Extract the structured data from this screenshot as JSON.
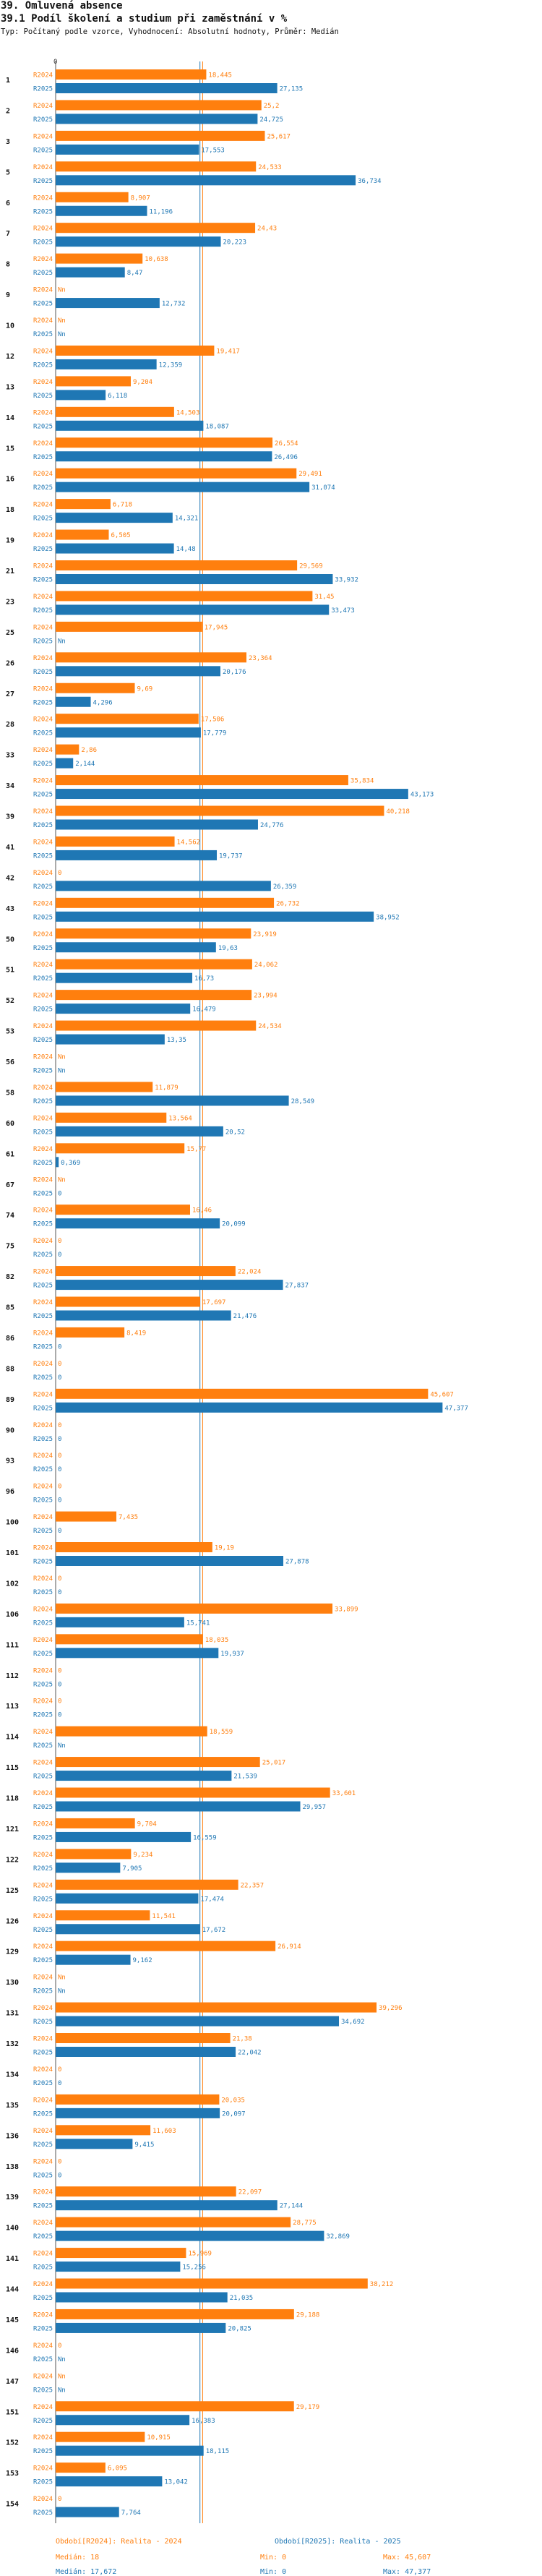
{
  "header": {
    "title": "39. Omluvená absence",
    "subtitle": "39.1 Podíl školení a studium při zaměstnání v %",
    "info": "Typ: Počítaný podle vzorce, Vyhodnocení: Absolutní hodnoty, Průměr: Medián"
  },
  "chart_data": {
    "type": "bar",
    "orientation": "horizontal",
    "xlim": [
      0,
      50
    ],
    "reference_lines": {
      "median_2024": 18,
      "median_2025": 17.672
    },
    "series": [
      {
        "name": "R2024",
        "color": "#ff7f0e"
      },
      {
        "name": "R2025",
        "color": "#1f77b4"
      }
    ],
    "categories": [
      {
        "id": "1",
        "r2024": "18,445",
        "r2025": "27,135"
      },
      {
        "id": "2",
        "r2024": "25,2",
        "r2025": "24,725"
      },
      {
        "id": "3",
        "r2024": "25,617",
        "r2025": "17,553"
      },
      {
        "id": "5",
        "r2024": "24,533",
        "r2025": "36,734"
      },
      {
        "id": "6",
        "r2024": "8,907",
        "r2025": "11,196"
      },
      {
        "id": "7",
        "r2024": "24,43",
        "r2025": "20,223"
      },
      {
        "id": "8",
        "r2024": "10,638",
        "r2025": "8,47"
      },
      {
        "id": "9",
        "r2024": "Nn",
        "r2025": "12,732"
      },
      {
        "id": "10",
        "r2024": "Nn",
        "r2025": "Nn"
      },
      {
        "id": "12",
        "r2024": "19,417",
        "r2025": "12,359"
      },
      {
        "id": "13",
        "r2024": "9,204",
        "r2025": "6,118"
      },
      {
        "id": "14",
        "r2024": "14,503",
        "r2025": "18,087"
      },
      {
        "id": "15",
        "r2024": "26,554",
        "r2025": "26,496"
      },
      {
        "id": "16",
        "r2024": "29,491",
        "r2025": "31,074"
      },
      {
        "id": "18",
        "r2024": "6,718",
        "r2025": "14,321"
      },
      {
        "id": "19",
        "r2024": "6,505",
        "r2025": "14,48"
      },
      {
        "id": "21",
        "r2024": "29,569",
        "r2025": "33,932"
      },
      {
        "id": "23",
        "r2024": "31,45",
        "r2025": "33,473"
      },
      {
        "id": "25",
        "r2024": "17,945",
        "r2025": "Nn"
      },
      {
        "id": "26",
        "r2024": "23,364",
        "r2025": "20,176"
      },
      {
        "id": "27",
        "r2024": "9,69",
        "r2025": "4,296"
      },
      {
        "id": "28",
        "r2024": "17,506",
        "r2025": "17,779"
      },
      {
        "id": "33",
        "r2024": "2,86",
        "r2025": "2,144"
      },
      {
        "id": "34",
        "r2024": "35,834",
        "r2025": "43,173"
      },
      {
        "id": "39",
        "r2024": "40,218",
        "r2025": "24,776"
      },
      {
        "id": "41",
        "r2024": "14,562",
        "r2025": "19,737"
      },
      {
        "id": "42",
        "r2024": "0",
        "r2025": "26,359"
      },
      {
        "id": "43",
        "r2024": "26,732",
        "r2025": "38,952"
      },
      {
        "id": "50",
        "r2024": "23,919",
        "r2025": "19,63"
      },
      {
        "id": "51",
        "r2024": "24,062",
        "r2025": "16,73"
      },
      {
        "id": "52",
        "r2024": "23,994",
        "r2025": "16,479"
      },
      {
        "id": "53",
        "r2024": "24,534",
        "r2025": "13,35"
      },
      {
        "id": "56",
        "r2024": "Nn",
        "r2025": "Nn"
      },
      {
        "id": "58",
        "r2024": "11,879",
        "r2025": "28,549"
      },
      {
        "id": "60",
        "r2024": "13,564",
        "r2025": "20,52"
      },
      {
        "id": "61",
        "r2024": "15,77",
        "r2025": "0,369"
      },
      {
        "id": "67",
        "r2024": "Nn",
        "r2025": "0"
      },
      {
        "id": "74",
        "r2024": "16,46",
        "r2025": "20,099"
      },
      {
        "id": "75",
        "r2024": "0",
        "r2025": "0"
      },
      {
        "id": "82",
        "r2024": "22,024",
        "r2025": "27,837"
      },
      {
        "id": "85",
        "r2024": "17,697",
        "r2025": "21,476"
      },
      {
        "id": "86",
        "r2024": "8,419",
        "r2025": "0"
      },
      {
        "id": "88",
        "r2024": "0",
        "r2025": "0"
      },
      {
        "id": "89",
        "r2024": "45,607",
        "r2025": "47,377"
      },
      {
        "id": "90",
        "r2024": "0",
        "r2025": "0"
      },
      {
        "id": "93",
        "r2024": "0",
        "r2025": "0"
      },
      {
        "id": "96",
        "r2024": "0",
        "r2025": "0"
      },
      {
        "id": "100",
        "r2024": "7,435",
        "r2025": "0"
      },
      {
        "id": "101",
        "r2024": "19,19",
        "r2025": "27,878"
      },
      {
        "id": "102",
        "r2024": "0",
        "r2025": "0"
      },
      {
        "id": "106",
        "r2024": "33,899",
        "r2025": "15,741"
      },
      {
        "id": "111",
        "r2024": "18,035",
        "r2025": "19,937"
      },
      {
        "id": "112",
        "r2024": "0",
        "r2025": "0"
      },
      {
        "id": "113",
        "r2024": "0",
        "r2025": "0"
      },
      {
        "id": "114",
        "r2024": "18,559",
        "r2025": "Nn"
      },
      {
        "id": "115",
        "r2024": "25,017",
        "r2025": "21,539"
      },
      {
        "id": "118",
        "r2024": "33,601",
        "r2025": "29,957"
      },
      {
        "id": "121",
        "r2024": "9,704",
        "r2025": "16,559"
      },
      {
        "id": "122",
        "r2024": "9,234",
        "r2025": "7,905"
      },
      {
        "id": "125",
        "r2024": "22,357",
        "r2025": "17,474"
      },
      {
        "id": "126",
        "r2024": "11,541",
        "r2025": "17,672"
      },
      {
        "id": "129",
        "r2024": "26,914",
        "r2025": "9,162"
      },
      {
        "id": "130",
        "r2024": "Nn",
        "r2025": "Nn"
      },
      {
        "id": "131",
        "r2024": "39,296",
        "r2025": "34,692"
      },
      {
        "id": "132",
        "r2024": "21,38",
        "r2025": "22,042"
      },
      {
        "id": "134",
        "r2024": "0",
        "r2025": "0"
      },
      {
        "id": "135",
        "r2024": "20,035",
        "r2025": "20,097"
      },
      {
        "id": "136",
        "r2024": "11,603",
        "r2025": "9,415"
      },
      {
        "id": "138",
        "r2024": "0",
        "r2025": "0"
      },
      {
        "id": "139",
        "r2024": "22,097",
        "r2025": "27,144"
      },
      {
        "id": "140",
        "r2024": "28,775",
        "r2025": "32,869"
      },
      {
        "id": "141",
        "r2024": "15,969",
        "r2025": "15,256"
      },
      {
        "id": "144",
        "r2024": "38,212",
        "r2025": "21,035"
      },
      {
        "id": "145",
        "r2024": "29,188",
        "r2025": "20,825"
      },
      {
        "id": "146",
        "r2024": "0",
        "r2025": "Nn"
      },
      {
        "id": "147",
        "r2024": "Nn",
        "r2025": "Nn"
      },
      {
        "id": "151",
        "r2024": "29,179",
        "r2025": "16,383"
      },
      {
        "id": "152",
        "r2024": "10,915",
        "r2025": "18,115"
      },
      {
        "id": "153",
        "r2024": "6,095",
        "r2025": "13,042"
      },
      {
        "id": "154",
        "r2024": "0",
        "r2025": "7,764"
      }
    ]
  },
  "footer": {
    "r2024": {
      "label": "Období[R2024]: Realita - 2024",
      "median": "Medián: 18",
      "min": "Min: 0",
      "max": "Max: 45,607"
    },
    "r2025": {
      "label": "Období[R2025]: Realita - 2025",
      "median": "Medián: 17,672",
      "min": "Min: 0",
      "max": "Max: 47,377"
    }
  }
}
